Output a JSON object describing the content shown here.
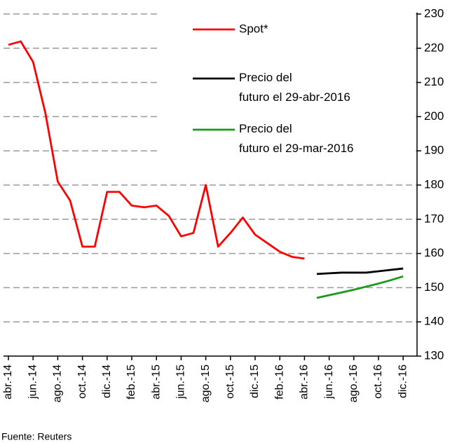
{
  "chart_data": {
    "type": "line",
    "source": "Fuente: Reuters",
    "categories": [
      "abr.-14",
      null,
      "jun.-14",
      null,
      "ago.-14",
      null,
      "oct.-14",
      null,
      "dic.-14",
      null,
      "feb.-15",
      null,
      "abr.-15",
      null,
      "jun.-15",
      null,
      "ago.-15",
      null,
      "oct.-15",
      null,
      "dic.-15",
      null,
      "feb.-16",
      null,
      "abr.-16",
      null,
      "jun.-16",
      null,
      "ago.-16",
      null,
      "oct.-16",
      null,
      "dic.-16"
    ],
    "series": [
      {
        "name": "Spot*",
        "color": "#ff0000",
        "values": [
          221,
          222,
          216,
          201,
          181,
          175.5,
          162,
          162,
          178,
          178,
          174,
          173.5,
          174,
          171,
          165,
          166,
          180,
          162,
          166,
          170.5,
          165.5,
          163,
          160.5,
          159,
          158.5,
          null,
          null,
          null,
          null,
          null,
          null,
          null,
          null
        ]
      },
      {
        "name": "Precio del futuro el 29-abr-2016",
        "color": "#000000",
        "values": [
          null,
          null,
          null,
          null,
          null,
          null,
          null,
          null,
          null,
          null,
          null,
          null,
          null,
          null,
          null,
          null,
          null,
          null,
          null,
          null,
          null,
          null,
          null,
          null,
          null,
          154,
          154.2,
          154.4,
          154.4,
          154.4,
          154.8,
          155.2,
          155.6
        ]
      },
      {
        "name": "Precio del futuro el 29-mar-2016",
        "color": "#1a9a1a",
        "values": [
          null,
          null,
          null,
          null,
          null,
          null,
          null,
          null,
          null,
          null,
          null,
          null,
          null,
          null,
          null,
          null,
          null,
          null,
          null,
          null,
          null,
          null,
          null,
          null,
          null,
          147,
          147.8,
          148.6,
          149.4,
          150.3,
          151.2,
          152.2,
          153.3
        ]
      }
    ],
    "ylim": [
      130,
      230
    ],
    "yticks": [
      130,
      140,
      150,
      160,
      170,
      180,
      190,
      200,
      210,
      220,
      230
    ],
    "grid": true
  }
}
